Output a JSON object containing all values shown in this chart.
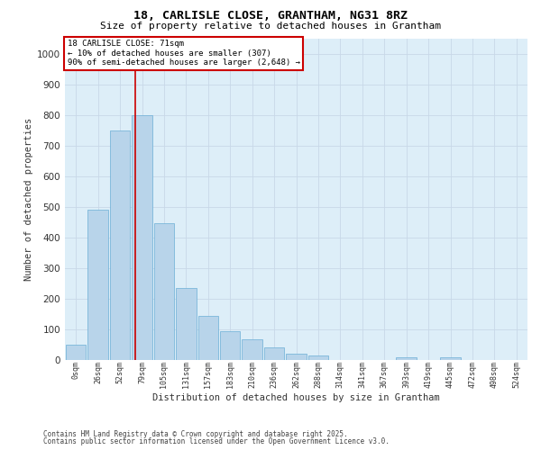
{
  "title_line1": "18, CARLISLE CLOSE, GRANTHAM, NG31 8RZ",
  "title_line2": "Size of property relative to detached houses in Grantham",
  "xlabel": "Distribution of detached houses by size in Grantham",
  "ylabel": "Number of detached properties",
  "footnote1": "Contains HM Land Registry data © Crown copyright and database right 2025.",
  "footnote2": "Contains public sector information licensed under the Open Government Licence v3.0.",
  "annotation_title": "18 CARLISLE CLOSE: 71sqm",
  "annotation_line1": "← 10% of detached houses are smaller (307)",
  "annotation_line2": "90% of semi-detached houses are larger (2,648) →",
  "bar_color": "#b8d4ea",
  "bar_edge_color": "#6aaed6",
  "vline_color": "#cc0000",
  "background_color": "#ddeef8",
  "annotation_box_edge": "#cc0000",
  "categories": [
    "0sqm",
    "26sqm",
    "52sqm",
    "79sqm",
    "105sqm",
    "131sqm",
    "157sqm",
    "183sqm",
    "210sqm",
    "236sqm",
    "262sqm",
    "288sqm",
    "314sqm",
    "341sqm",
    "367sqm",
    "393sqm",
    "419sqm",
    "445sqm",
    "472sqm",
    "498sqm",
    "524sqm"
  ],
  "values": [
    50,
    490,
    750,
    800,
    445,
    235,
    145,
    95,
    68,
    42,
    22,
    16,
    0,
    0,
    0,
    10,
    0,
    8,
    0,
    0,
    0
  ],
  "vline_x": 2.7,
  "ylim_max": 1050,
  "yticks": [
    0,
    100,
    200,
    300,
    400,
    500,
    600,
    700,
    800,
    900,
    1000
  ],
  "grid_color": "#c8d8e8",
  "title1_fontsize": 9.5,
  "title2_fontsize": 8.0,
  "ylabel_fontsize": 7.5,
  "xlabel_fontsize": 7.5,
  "ytick_fontsize": 7.5,
  "xtick_fontsize": 6.0,
  "annot_fontsize": 6.5,
  "footnote_fontsize": 5.5
}
